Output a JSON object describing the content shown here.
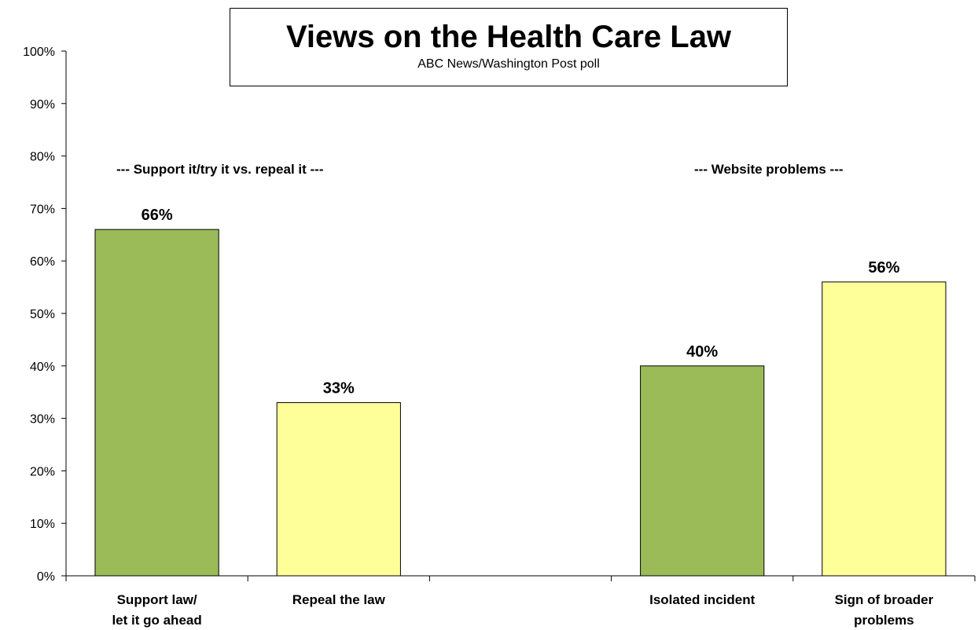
{
  "chart_data": {
    "type": "bar",
    "title": "Views on the Health Care Law",
    "subtitle": "ABC News/Washington  Post poll",
    "categories": [
      [
        "Support law/",
        "let it go ahead"
      ],
      [
        "Repeal the law"
      ],
      [
        ""
      ],
      [
        "Isolated incident"
      ],
      [
        "Sign of broader",
        "problems"
      ]
    ],
    "values": [
      66,
      33,
      null,
      40,
      56
    ],
    "value_labels": [
      "66%",
      "33%",
      "",
      "40%",
      "56%"
    ],
    "bar_colors": [
      "#9bbb59",
      "#ffff99",
      "",
      "#9bbb59",
      "#ffff99"
    ],
    "ylim": [
      0,
      100
    ],
    "yticks": [
      "0%",
      "10%",
      "20%",
      "30%",
      "40%",
      "50%",
      "60%",
      "70%",
      "80%",
      "90%",
      "100%"
    ],
    "group_labels": [
      "--- Support it/try it vs. repeal it ---",
      "--- Website problems ---"
    ],
    "grid": false,
    "legend": "none"
  }
}
